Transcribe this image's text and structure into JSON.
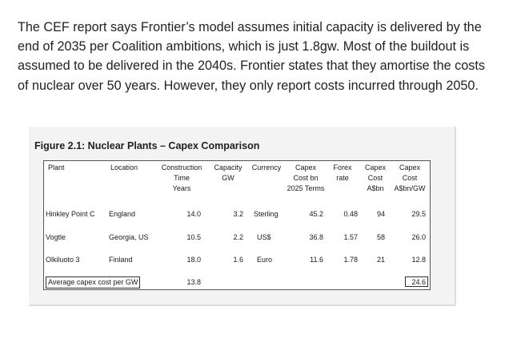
{
  "paragraph": "The CEF report says Frontier’s model assumes initial capacity is delivered by the end of 2035 per Coalition ambitions, which is just 1.8gw. Most of the buildout is assumed to be delivered in the 2040s. Frontier states that they amortise the costs of nuclear over 50 years. However, they only report costs incurred through 2050.",
  "figure": {
    "title": "Figure 2.1: Nuclear Plants – Capex Comparison",
    "headers": {
      "plant": "Plant",
      "location": "Location",
      "construction": [
        "Construction",
        "Time",
        "Years"
      ],
      "capacity": [
        "Capacity",
        "GW"
      ],
      "currency": "Currency",
      "capex_bn": [
        "Capex",
        "Cost bn",
        "2025 Terms"
      ],
      "forex": [
        "Forex",
        "rate"
      ],
      "capex_aud": [
        "Capex",
        "Cost",
        "A$bn"
      ],
      "capex_per_gw": [
        "Capex",
        "Cost",
        "A$bn/GW"
      ]
    },
    "rows": [
      {
        "plant": "Hinkley Point C",
        "location": "England",
        "construction": "14.0",
        "capacity": "3.2",
        "currency": "Sterling",
        "capex_bn": "45.2",
        "forex": "0.48",
        "capex_aud": "94",
        "capex_per_gw": "29.5"
      },
      {
        "plant": "Vogtle",
        "location": "Georgia, US",
        "construction": "10.5",
        "capacity": "2.2",
        "currency": "US$",
        "capex_bn": "36.8",
        "forex": "1.57",
        "capex_aud": "58",
        "capex_per_gw": "26.0"
      },
      {
        "plant": "Olkiluoto 3",
        "location": "Finland",
        "construction": "18.0",
        "capacity": "1.6",
        "currency": "Euro",
        "capex_bn": "11.6",
        "forex": "1.78",
        "capex_aud": "21",
        "capex_per_gw": "12.8"
      }
    ],
    "footer": {
      "label": "Average capex cost per GW",
      "construction": "13.8",
      "capex_per_gw": "24.6"
    }
  }
}
